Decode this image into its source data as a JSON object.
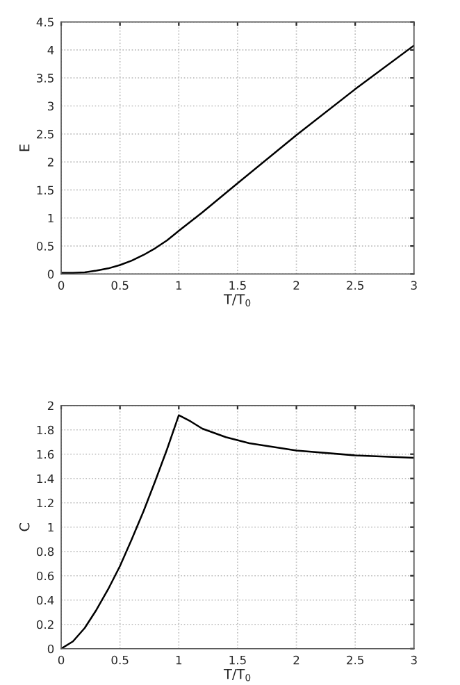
{
  "chart_data": [
    {
      "type": "line",
      "xlabel": "T/T$_{0}$",
      "ylabel": "E",
      "xlim": [
        0,
        3
      ],
      "ylim": [
        0,
        4.5
      ],
      "xticks": [
        0,
        0.5,
        1,
        1.5,
        2,
        2.5,
        3
      ],
      "yticks": [
        0,
        0.5,
        1,
        1.5,
        2,
        2.5,
        3,
        3.5,
        4,
        4.5
      ],
      "grid": true,
      "line_style": "solid",
      "series": [
        {
          "color": "#000000",
          "x": [
            0,
            0.1,
            0.2,
            0.3,
            0.4,
            0.5,
            0.6,
            0.7,
            0.8,
            0.9,
            1.0,
            1.2,
            1.5,
            2,
            2.5,
            3
          ],
          "values": [
            0.02,
            0.02,
            0.03,
            0.06,
            0.1,
            0.16,
            0.24,
            0.34,
            0.46,
            0.6,
            0.77,
            1.1,
            1.62,
            2.48,
            3.3,
            4.08
          ]
        }
      ]
    },
    {
      "type": "line",
      "xlabel": "T/T$_{0}$",
      "ylabel": "C",
      "xlim": [
        0,
        3
      ],
      "ylim": [
        0,
        2
      ],
      "xticks": [
        0,
        0.5,
        1,
        1.5,
        2,
        2.5,
        3
      ],
      "yticks": [
        0,
        0.2,
        0.4,
        0.6,
        0.8,
        1,
        1.2,
        1.4,
        1.6,
        1.8,
        2
      ],
      "grid": true,
      "line_style": "solid",
      "series": [
        {
          "color": "#000000",
          "x": [
            0,
            0.1,
            0.2,
            0.3,
            0.4,
            0.5,
            0.6,
            0.7,
            0.8,
            0.9,
            1.0,
            1.1,
            1.2,
            1.4,
            1.6,
            1.8,
            2,
            2.5,
            3
          ],
          "values": [
            0,
            0.06,
            0.17,
            0.32,
            0.49,
            0.68,
            0.9,
            1.13,
            1.38,
            1.64,
            1.92,
            1.87,
            1.81,
            1.74,
            1.69,
            1.66,
            1.63,
            1.59,
            1.57
          ]
        }
      ]
    }
  ]
}
